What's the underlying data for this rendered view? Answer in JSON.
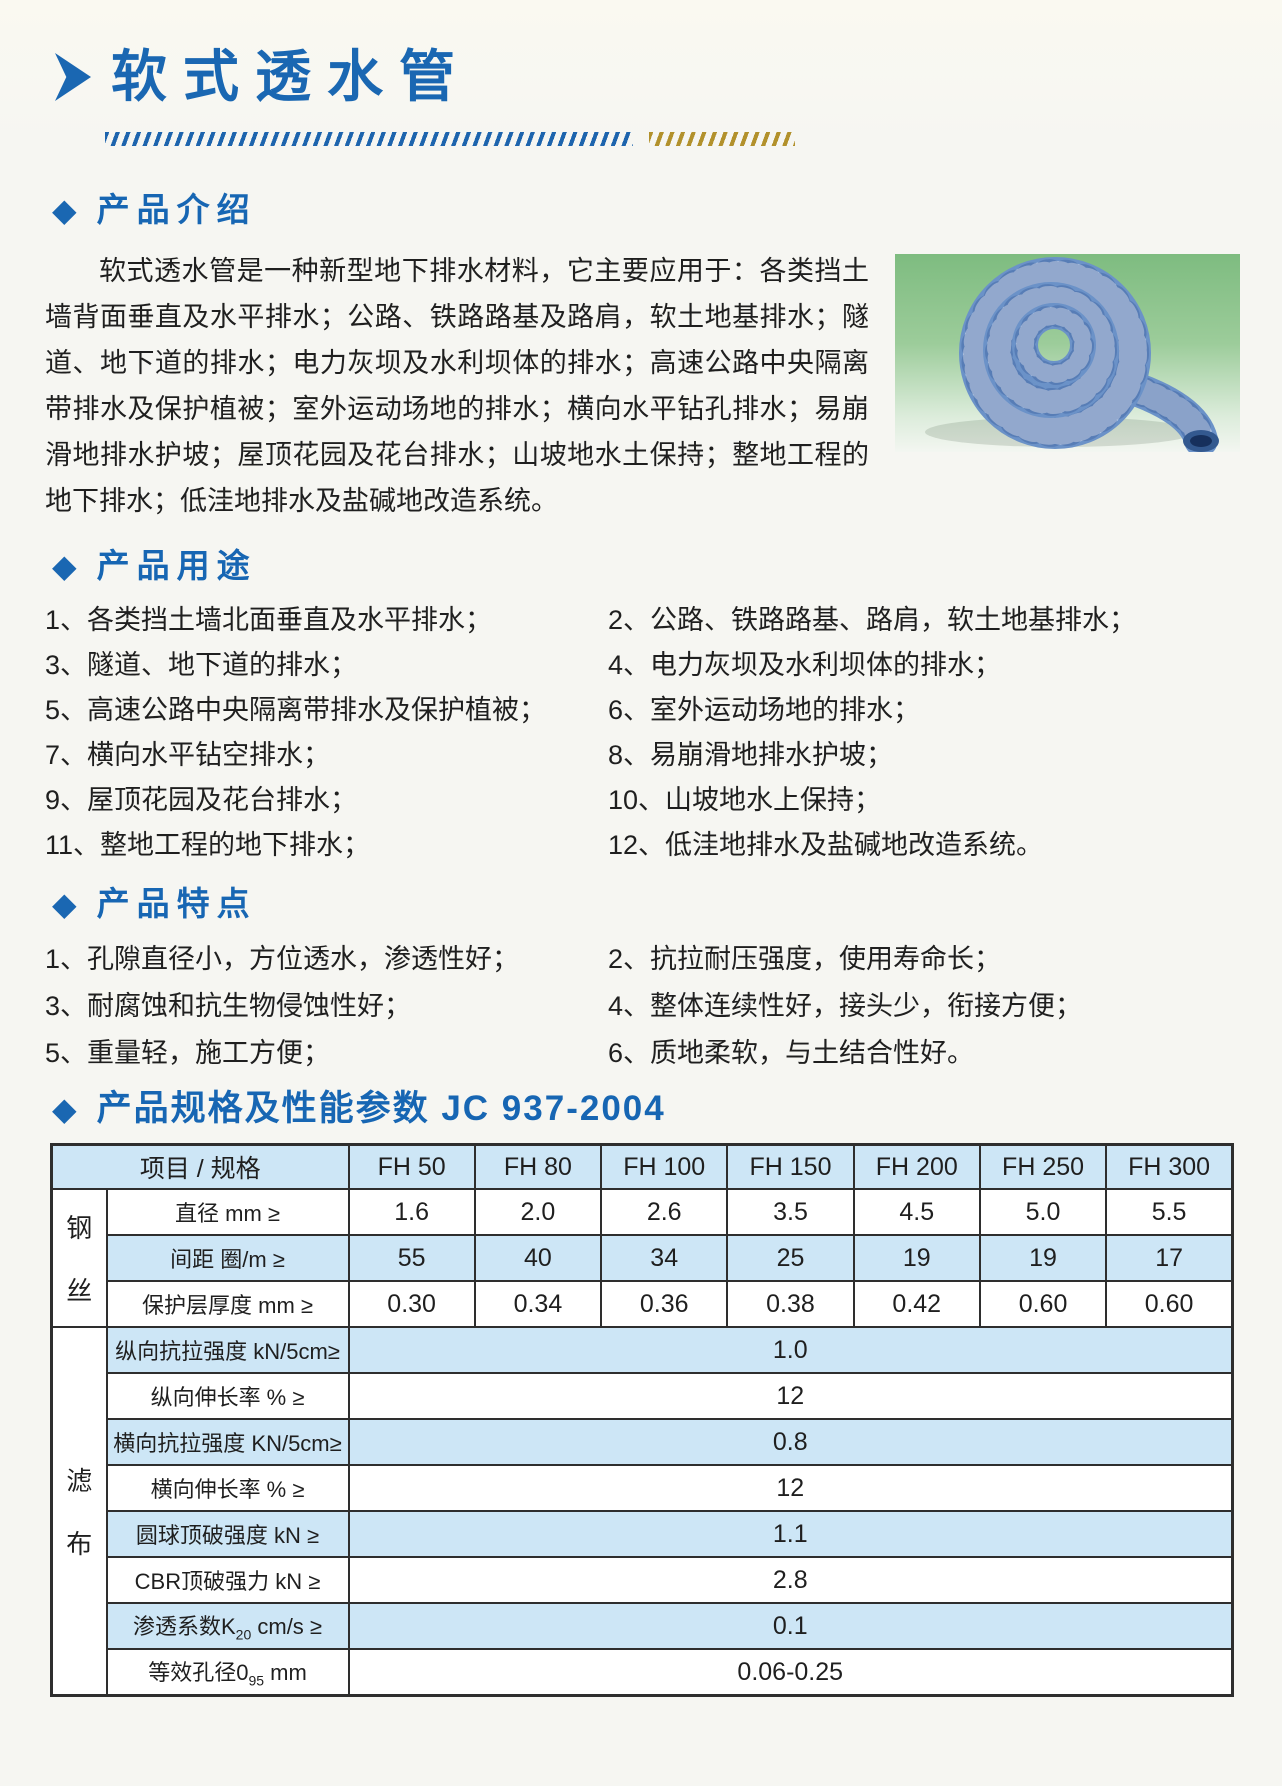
{
  "page": {
    "title": "软式透水管"
  },
  "icons": {
    "diamond": "◆",
    "title_arrow": "right-arrow"
  },
  "colors": {
    "accent_blue": "#1a67b2",
    "divider_blue": "#1d64ad",
    "divider_gold": "#b2912c",
    "table_shade": "#cde6f6",
    "table_border": "#2e2e2e",
    "photo_green": "#7ebc80",
    "pipe_blue": "#6b92c8"
  },
  "sections": {
    "intro": {
      "heading": "产品介绍",
      "body": "软式透水管是一种新型地下排水材料，它主要应用于：各类挡土墙背面垂直及水平排水；公路、铁路路基及路肩，软土地基排水；隧道、地下道的排水；电力灰坝及水利坝体的排水；高速公路中央隔离带排水及保护植被；室外运动场地的排水；横向水平钻孔排水；易崩滑地排水护坡；屋顶花园及花台排水；山坡地水土保持；整地工程的地下排水；低洼地排水及盐碱地改造系统。"
    },
    "uses": {
      "heading": "产品用途",
      "items": [
        "1、各类挡土墙北面垂直及水平排水；",
        "2、公路、铁路路基、路肩，软土地基排水；",
        "3、隧道、地下道的排水；",
        "4、电力灰坝及水利坝体的排水；",
        "5、高速公路中央隔离带排水及保护植被；",
        "6、室外运动场地的排水；",
        "7、横向水平钻空排水；",
        "8、易崩滑地排水护坡；",
        "9、屋顶花园及花台排水；",
        "10、山坡地水上保持；",
        "11、整地工程的地下排水；",
        "12、低洼地排水及盐碱地改造系统。"
      ]
    },
    "features": {
      "heading": "产品特点",
      "items": [
        "1、孔隙直径小，方位透水，渗透性好；",
        "2、抗拉耐压强度，使用寿命长；",
        "3、耐腐蚀和抗生物侵蚀性好；",
        "4、整体连续性好，接头少，衔接方便；",
        "5、重量轻，施工方便；",
        "6、质地柔软，与土结合性好。"
      ]
    },
    "specs": {
      "heading": "产品规格及性能参数 JC 937-2004",
      "table": {
        "header": [
          "项目 / 规格",
          "FH 50",
          "FH 80",
          "FH 100",
          "FH 150",
          "FH 200",
          "FH 250",
          "FH 300"
        ],
        "groups": [
          {
            "name": "钢丝",
            "rows": [
              {
                "label": "直径 mm ≥",
                "values": [
                  "1.6",
                  "2.0",
                  "2.6",
                  "3.5",
                  "4.5",
                  "5.0",
                  "5.5"
                ],
                "shade": false
              },
              {
                "label": "间距 圈/m ≥",
                "values": [
                  "55",
                  "40",
                  "34",
                  "25",
                  "19",
                  "19",
                  "17"
                ],
                "shade": true
              },
              {
                "label": "保护层厚度 mm ≥",
                "values": [
                  "0.30",
                  "0.34",
                  "0.36",
                  "0.38",
                  "0.42",
                  "0.60",
                  "0.60"
                ],
                "shade": false
              }
            ]
          },
          {
            "name": "滤布",
            "rows": [
              {
                "label": "纵向抗拉强度 kN/5cm≥",
                "span_value": "1.0",
                "shade": true
              },
              {
                "label": "纵向伸长率 % ≥",
                "span_value": "12",
                "shade": false
              },
              {
                "label": "横向抗拉强度 KN/5cm≥",
                "span_value": "0.8",
                "shade": true
              },
              {
                "label": "横向伸长率 % ≥",
                "span_value": "12",
                "shade": false
              },
              {
                "label": "圆球顶破强度 kN ≥",
                "span_value": "1.1",
                "shade": true
              },
              {
                "label": "CBR顶破强力 kN ≥",
                "span_value": "2.8",
                "shade": false
              },
              {
                "label_parts": [
                  "渗透系数K",
                  "20",
                  " cm/s ≥"
                ],
                "span_value": "0.1",
                "shade": true
              },
              {
                "label_parts": [
                  "等效孔径0",
                  "95",
                  " mm"
                ],
                "span_value": "0.06-0.25",
                "shade": false
              }
            ]
          }
        ]
      }
    }
  }
}
